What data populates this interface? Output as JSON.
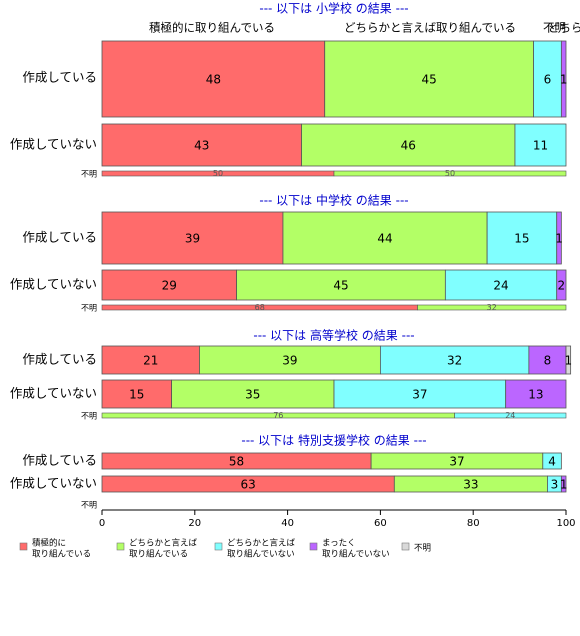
{
  "chart_data": {
    "type": "bar",
    "orientation": "horizontal",
    "stacked": true,
    "xlim": [
      0,
      100
    ],
    "x_ticks": [
      "0",
      "20",
      "40",
      "60",
      "80",
      "100"
    ],
    "series_names": [
      "積極的に取り組んでいる",
      "どちらかと言えば取り組んでいる",
      "どちらかと言えば取り組んでいない",
      "まったく取り組んでいない",
      "不明"
    ],
    "colors": [
      "#ff6b6b",
      "#b3ff66",
      "#80ffff",
      "#bb66ff",
      "#d9d9d9"
    ],
    "top_headers": [
      "積極的に取り組んでいる",
      "どちらかと言えば取り組んでいる",
      "どちらかと言えば",
      "不明"
    ],
    "legend": [
      {
        "line1": "積極的に",
        "line2": "取り組んでいる"
      },
      {
        "line1": "どちらかと言えば",
        "line2": "取り組んでいる"
      },
      {
        "line1": "どちらかと言えば",
        "line2": "取り組んでいない"
      },
      {
        "line1": "まったく",
        "line2": "取り組んでいない"
      },
      {
        "line1": "不明",
        "line2": ""
      }
    ],
    "panels": [
      {
        "title": "--- 以下は 小学校 の結果 ---",
        "rows": [
          {
            "label": "作成している",
            "values": [
              48,
              45,
              6,
              1,
              0
            ],
            "labels": [
              "48",
              "45",
              "6",
              "1",
              ""
            ]
          },
          {
            "label": "作成していない",
            "values": [
              43,
              46,
              11,
              0,
              0
            ],
            "labels": [
              "43",
              "46",
              "11",
              "",
              ""
            ]
          },
          {
            "label": "不明",
            "values": [
              50,
              50,
              0,
              0,
              0
            ],
            "labels": [
              "50",
              "50",
              "",
              "",
              ""
            ]
          }
        ]
      },
      {
        "title": "--- 以下は 中学校 の結果 ---",
        "rows": [
          {
            "label": "作成している",
            "values": [
              39,
              44,
              15,
              1,
              0
            ],
            "labels": [
              "39",
              "44",
              "15",
              "1",
              ""
            ]
          },
          {
            "label": "作成していない",
            "values": [
              29,
              45,
              24,
              2,
              0
            ],
            "labels": [
              "29",
              "45",
              "24",
              "2",
              ""
            ]
          },
          {
            "label": "不明",
            "values": [
              68,
              32,
              0,
              0,
              0
            ],
            "labels": [
              "68",
              "32",
              "",
              "",
              ""
            ]
          }
        ]
      },
      {
        "title": "--- 以下は 高等学校 の結果 ---",
        "rows": [
          {
            "label": "作成している",
            "values": [
              21,
              39,
              32,
              8,
              1
            ],
            "labels": [
              "21",
              "39",
              "32",
              "8",
              "1"
            ]
          },
          {
            "label": "作成していない",
            "values": [
              15,
              35,
              37,
              13,
              0
            ],
            "labels": [
              "15",
              "35",
              "37",
              "13",
              ""
            ]
          },
          {
            "label": "不明",
            "values": [
              0,
              76,
              24,
              0,
              0
            ],
            "labels": [
              "",
              "76",
              "24",
              "",
              ""
            ]
          }
        ]
      },
      {
        "title": "--- 以下は 特別支援学校 の結果 ---",
        "rows": [
          {
            "label": "作成している",
            "values": [
              58,
              37,
              4,
              0,
              0
            ],
            "labels": [
              "58",
              "37",
              "4",
              "",
              ""
            ]
          },
          {
            "label": "作成していない",
            "values": [
              63,
              33,
              3,
              1,
              0
            ],
            "labels": [
              "63",
              "33",
              "3",
              "1",
              ""
            ]
          },
          {
            "label": "不明",
            "values": [
              0,
              0,
              0,
              0,
              0
            ],
            "labels": [
              "",
              "",
              "",
              "",
              ""
            ]
          }
        ]
      }
    ]
  }
}
